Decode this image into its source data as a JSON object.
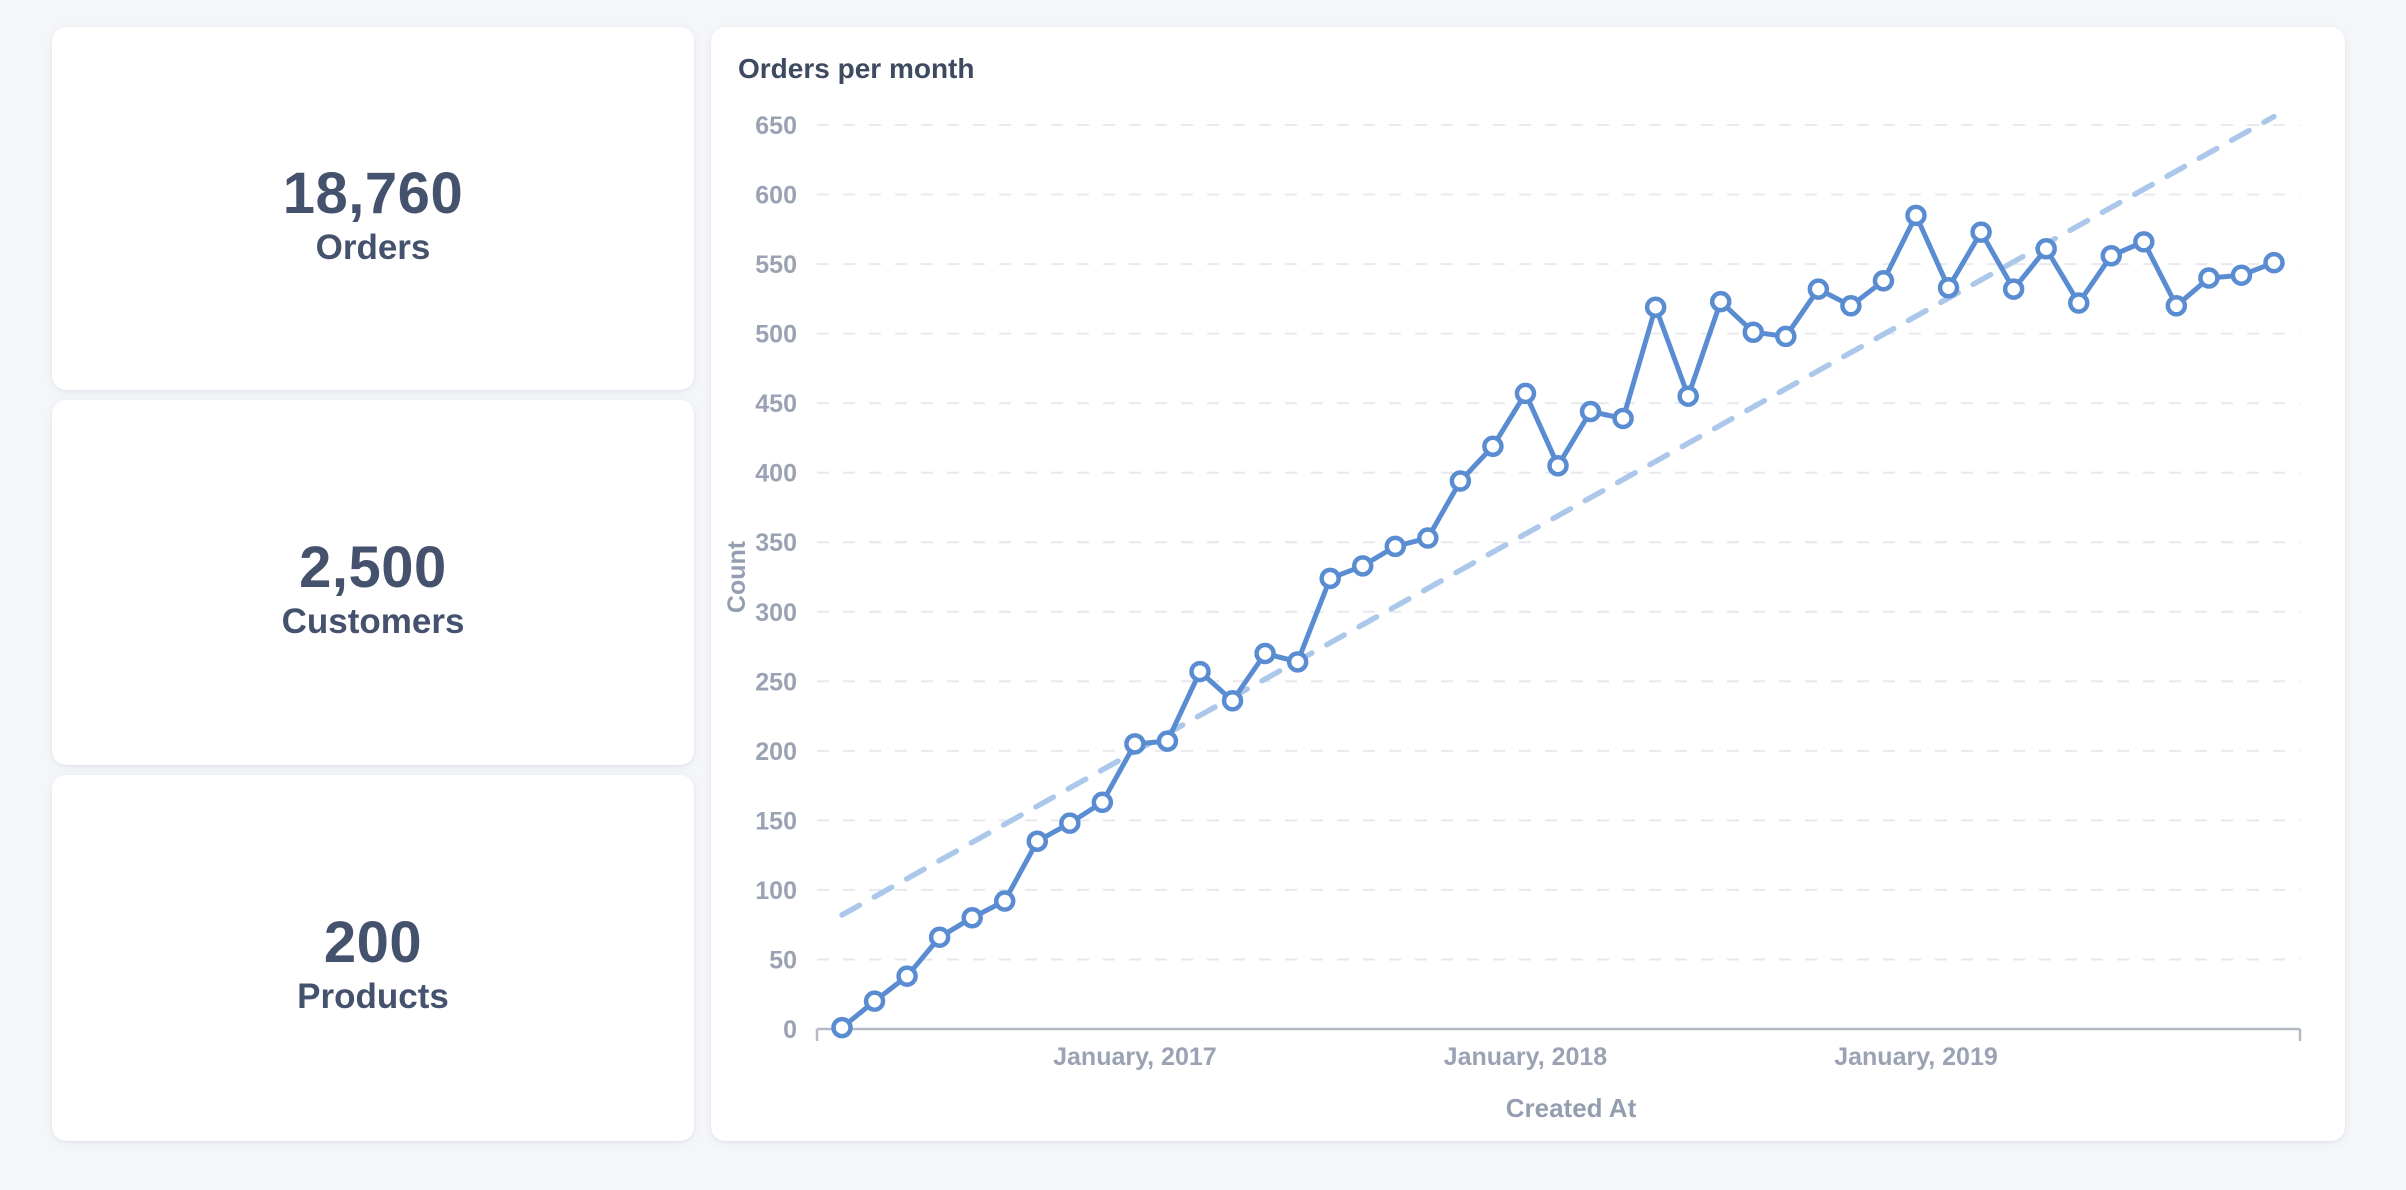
{
  "page": {
    "background_color": "#f4f6f9",
    "card_color": "#ffffff"
  },
  "stats": [
    {
      "value": "18,760",
      "label": "Orders"
    },
    {
      "value": "2,500",
      "label": "Customers"
    },
    {
      "value": "200",
      "label": "Products"
    }
  ],
  "chart": {
    "title": "Orders per month"
  },
  "colors": {
    "line": "#5a8cd2",
    "marker_fill": "#ffffff",
    "trendline": "#abc8ea",
    "gridline": "#e6e9ee",
    "axis_line": "#b3bac4",
    "tick_text": "#9aa2b4",
    "axis_title_text": "#959eb0",
    "chart_title_text": "#3e4a5f",
    "stat_text": "#45526e"
  },
  "chart_data": {
    "type": "line",
    "title": "Orders per month",
    "xlabel": "Created At",
    "ylabel": "Count",
    "ylim": [
      0,
      650
    ],
    "ytick_step": 50,
    "grid": true,
    "legend": "none",
    "x": [
      "2016-04",
      "2016-05",
      "2016-06",
      "2016-07",
      "2016-08",
      "2016-09",
      "2016-10",
      "2016-11",
      "2016-12",
      "2017-01",
      "2017-02",
      "2017-03",
      "2017-04",
      "2017-05",
      "2017-06",
      "2017-07",
      "2017-08",
      "2017-09",
      "2017-10",
      "2017-11",
      "2017-12",
      "2018-01",
      "2018-02",
      "2018-03",
      "2018-04",
      "2018-05",
      "2018-06",
      "2018-07",
      "2018-08",
      "2018-09",
      "2018-10",
      "2018-11",
      "2018-12",
      "2019-01",
      "2019-02",
      "2019-03",
      "2019-04",
      "2019-05",
      "2019-06",
      "2019-07",
      "2019-08",
      "2019-09",
      "2019-10",
      "2019-11",
      "2019-12"
    ],
    "series": [
      {
        "name": "Orders per month",
        "style": "solid-with-markers",
        "values": [
          1,
          20,
          38,
          66,
          80,
          92,
          135,
          148,
          163,
          205,
          207,
          257,
          236,
          270,
          264,
          324,
          333,
          347,
          353,
          394,
          419,
          457,
          405,
          444,
          439,
          519,
          455,
          523,
          501,
          498,
          532,
          520,
          538,
          585,
          533,
          573,
          532,
          561,
          522,
          556,
          566,
          520,
          540,
          542,
          551
        ]
      },
      {
        "name": "Trend",
        "style": "dashed-straight",
        "endpoint_values": [
          82,
          656
        ],
        "endpoint_x_indices": [
          0,
          44
        ]
      }
    ],
    "xticks": [
      {
        "label": "January, 2017",
        "index": 9
      },
      {
        "label": "January, 2018",
        "index": 21
      },
      {
        "label": "January, 2019",
        "index": 33
      }
    ],
    "yticks": [
      0,
      50,
      100,
      150,
      200,
      250,
      300,
      350,
      400,
      450,
      500,
      550,
      600,
      650
    ]
  }
}
